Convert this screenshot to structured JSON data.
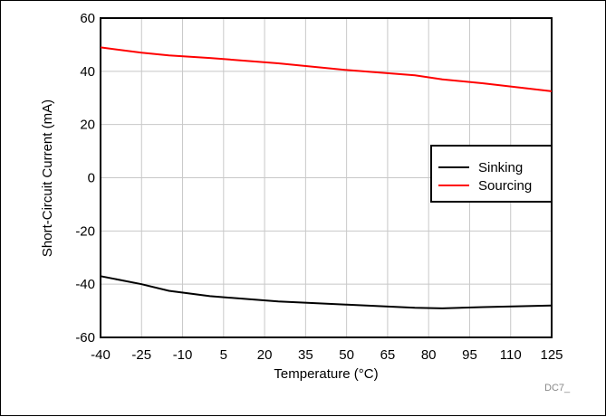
{
  "chart_data": {
    "type": "line",
    "title": "",
    "xlabel": "Temperature (°C)",
    "ylabel": "Short-Circuit Current (mA)",
    "xlim": [
      -40,
      125
    ],
    "ylim": [
      -60,
      60
    ],
    "x_ticks": [
      "-40",
      "-25",
      "-10",
      "5",
      "20",
      "35",
      "50",
      "65",
      "80",
      "95",
      "110",
      "125"
    ],
    "y_ticks": [
      "60",
      "40",
      "20",
      "0",
      "-20",
      "-40",
      "-60"
    ],
    "grid": true,
    "legend_position": "right",
    "series": [
      {
        "name": "Sinking",
        "color": "#000000",
        "x": [
          -40,
          -25,
          -15,
          0,
          25,
          50,
          75,
          85,
          100,
          125
        ],
        "y": [
          -37,
          -40,
          -42.5,
          -44.5,
          -46.5,
          -47.7,
          -48.9,
          -49.1,
          -48.6,
          -48
        ]
      },
      {
        "name": "Sourcing",
        "color": "#ff0000",
        "x": [
          -40,
          -25,
          -15,
          0,
          25,
          50,
          75,
          85,
          100,
          125
        ],
        "y": [
          49,
          47,
          46,
          45,
          43,
          40.5,
          38.5,
          37,
          35.5,
          32.5
        ]
      }
    ],
    "annotation": "DC7_"
  }
}
